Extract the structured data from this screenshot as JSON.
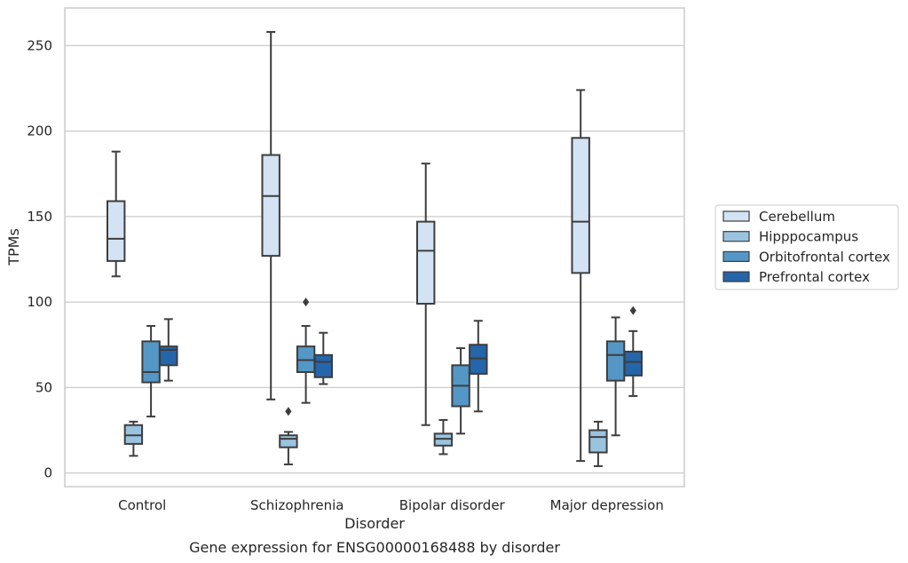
{
  "chart_data": {
    "type": "box",
    "caption": "Gene expression for ENSG00000168488 by disorder",
    "xlabel": "Disorder",
    "ylabel": "TPMs",
    "ylim": [
      -8,
      272
    ],
    "yticks": [
      0,
      50,
      100,
      150,
      200,
      250
    ],
    "grid": "horizontal",
    "legend_position": "right",
    "categories": [
      "Control",
      "Schizophrenia",
      "Bipolar disorder",
      "Major depression"
    ],
    "series": [
      {
        "name": "Cerebellum",
        "color": "#d3e3f3",
        "boxes": [
          {
            "whislo": 115,
            "q1": 124,
            "median": 137,
            "q3": 159,
            "whishi": 188,
            "fliers": []
          },
          {
            "whislo": 43,
            "q1": 127,
            "median": 162,
            "q3": 186,
            "whishi": 258,
            "fliers": []
          },
          {
            "whislo": 28,
            "q1": 99,
            "median": 130,
            "q3": 147,
            "whishi": 181,
            "fliers": []
          },
          {
            "whislo": 7,
            "q1": 117,
            "median": 147,
            "q3": 196,
            "whishi": 224,
            "fliers": []
          }
        ]
      },
      {
        "name": "Hipppocampus",
        "color": "#9ac3df",
        "boxes": [
          {
            "whislo": 10,
            "q1": 17,
            "median": 22,
            "q3": 28,
            "whishi": 30,
            "fliers": []
          },
          {
            "whislo": 5,
            "q1": 15,
            "median": 20,
            "q3": 22,
            "whishi": 24,
            "fliers": [
              36
            ]
          },
          {
            "whislo": 11,
            "q1": 16,
            "median": 20,
            "q3": 23,
            "whishi": 31,
            "fliers": []
          },
          {
            "whislo": 4,
            "q1": 12,
            "median": 21,
            "q3": 25,
            "whishi": 30,
            "fliers": []
          }
        ]
      },
      {
        "name": "Orbitofrontal cortex",
        "color": "#5497c6",
        "boxes": [
          {
            "whislo": 33,
            "q1": 53,
            "median": 59,
            "q3": 77,
            "whishi": 86,
            "fliers": []
          },
          {
            "whislo": 41,
            "q1": 59,
            "median": 66,
            "q3": 74,
            "whishi": 86,
            "fliers": [
              100
            ]
          },
          {
            "whislo": 23,
            "q1": 39,
            "median": 51,
            "q3": 63,
            "whishi": 73,
            "fliers": []
          },
          {
            "whislo": 22,
            "q1": 54,
            "median": 69,
            "q3": 77,
            "whishi": 91,
            "fliers": []
          }
        ]
      },
      {
        "name": "Prefrontal cortex",
        "color": "#2565a9",
        "boxes": [
          {
            "whislo": 54,
            "q1": 63,
            "median": 72,
            "q3": 74,
            "whishi": 90,
            "fliers": []
          },
          {
            "whislo": 52,
            "q1": 56,
            "median": 65,
            "q3": 69,
            "whishi": 82,
            "fliers": []
          },
          {
            "whislo": 36,
            "q1": 58,
            "median": 67,
            "q3": 75,
            "whishi": 89,
            "fliers": []
          },
          {
            "whislo": 45,
            "q1": 57,
            "median": 65,
            "q3": 71,
            "whishi": 83,
            "fliers": [
              95
            ]
          }
        ]
      }
    ]
  }
}
